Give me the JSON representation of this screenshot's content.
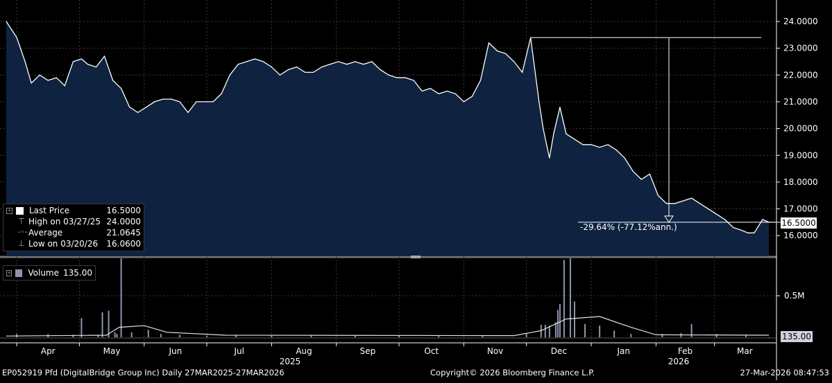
{
  "footer": {
    "left": "EP052919 Pfd (DigitalBridge Group Inc) Daily 27MAR2025-27MAR2026",
    "center": "Copyright© 2026 Bloomberg Finance L.P.",
    "right": "27-Mar-2026 08:47:53"
  },
  "price_legend": {
    "rows": [
      {
        "label": "Last Price",
        "value": "16.5000"
      },
      {
        "label": "High on 03/27/25",
        "value": "24.0000"
      },
      {
        "label": "Average",
        "value": "21.0645"
      },
      {
        "label": "Low on 03/20/26",
        "value": "16.0600"
      }
    ]
  },
  "volume_legend": {
    "label": "Volume",
    "value": "135.00"
  },
  "last_price_tag": "16.5000",
  "last_volume_tag": "135.00",
  "drawdown_label": "-29.64% (-77.12%ann.)",
  "colors": {
    "area_fill": "#0f2340",
    "line": "#ffffff",
    "volume_bar": "#8c96ad",
    "tag_bg": "#ffffff",
    "tag_text": "#000000"
  },
  "chart_data": [
    {
      "type": "area",
      "series": [
        {
          "name": "Last Price"
        }
      ],
      "ylim": [
        15.5,
        24.6
      ],
      "yticks": [
        "24.0000",
        "23.0000",
        "22.0000",
        "21.0000",
        "20.0000",
        "19.0000",
        "18.0000",
        "17.0000",
        "16.0000"
      ],
      "xticks": [
        "Apr",
        "May",
        "Jun",
        "Jul",
        "Aug",
        "Sep",
        "Oct",
        "Nov",
        "Dec",
        "Jan",
        "Feb",
        "Mar"
      ],
      "year_labels": [
        "2025",
        "2026"
      ],
      "x": [
        "2025-03-27",
        "2025-04-01",
        "2025-04-05",
        "2025-04-08",
        "2025-04-12",
        "2025-04-16",
        "2025-04-20",
        "2025-04-24",
        "2025-04-28",
        "2025-05-02",
        "2025-05-05",
        "2025-05-09",
        "2025-05-13",
        "2025-05-17",
        "2025-05-21",
        "2025-05-25",
        "2025-05-29",
        "2025-06-02",
        "2025-06-06",
        "2025-06-10",
        "2025-06-14",
        "2025-06-18",
        "2025-06-22",
        "2025-06-26",
        "2025-06-30",
        "2025-07-04",
        "2025-07-08",
        "2025-07-12",
        "2025-07-16",
        "2025-07-20",
        "2025-07-24",
        "2025-07-28",
        "2025-08-01",
        "2025-08-05",
        "2025-08-09",
        "2025-08-13",
        "2025-08-17",
        "2025-08-21",
        "2025-08-25",
        "2025-08-29",
        "2025-09-02",
        "2025-09-06",
        "2025-09-10",
        "2025-09-14",
        "2025-09-18",
        "2025-09-22",
        "2025-09-26",
        "2025-09-30",
        "2025-10-04",
        "2025-10-08",
        "2025-10-12",
        "2025-10-16",
        "2025-10-20",
        "2025-10-24",
        "2025-10-28",
        "2025-11-01",
        "2025-11-05",
        "2025-11-09",
        "2025-11-13",
        "2025-11-17",
        "2025-11-21",
        "2025-11-25",
        "2025-11-29",
        "2025-12-03",
        "2025-12-07",
        "2025-12-09",
        "2025-12-12",
        "2025-12-14",
        "2025-12-17",
        "2025-12-20",
        "2025-12-24",
        "2025-12-28",
        "2026-01-01",
        "2026-01-05",
        "2026-01-09",
        "2026-01-13",
        "2026-01-17",
        "2026-01-21",
        "2026-01-25",
        "2026-01-29",
        "2026-02-02",
        "2026-02-06",
        "2026-02-10",
        "2026-02-14",
        "2026-02-18",
        "2026-02-22",
        "2026-02-26",
        "2026-03-02",
        "2026-03-06",
        "2026-03-10",
        "2026-03-14",
        "2026-03-17",
        "2026-03-20",
        "2026-03-24",
        "2026-03-27"
      ],
      "values": [
        24.0,
        23.4,
        22.5,
        21.7,
        22.0,
        21.8,
        21.9,
        21.6,
        22.5,
        22.6,
        22.4,
        22.3,
        22.7,
        21.8,
        21.5,
        20.8,
        20.6,
        20.8,
        21.0,
        21.1,
        21.1,
        21.0,
        20.6,
        21.0,
        21.0,
        21.0,
        21.3,
        22.0,
        22.4,
        22.5,
        22.6,
        22.5,
        22.3,
        22.0,
        22.2,
        22.3,
        22.1,
        22.1,
        22.3,
        22.4,
        22.5,
        22.4,
        22.5,
        22.4,
        22.5,
        22.2,
        22.0,
        21.9,
        21.9,
        21.8,
        21.4,
        21.5,
        21.3,
        21.4,
        21.3,
        21.0,
        21.2,
        21.8,
        23.2,
        22.9,
        22.8,
        22.5,
        22.1,
        23.4,
        21.0,
        20.0,
        18.9,
        19.8,
        20.8,
        19.8,
        19.6,
        19.4,
        19.4,
        19.3,
        19.4,
        19.2,
        18.9,
        18.4,
        18.1,
        18.3,
        17.5,
        17.2,
        17.2,
        17.3,
        17.4,
        17.2,
        17.0,
        16.8,
        16.6,
        16.3,
        16.2,
        16.1,
        16.1,
        16.6,
        16.5
      ]
    },
    {
      "type": "bar",
      "series": [
        {
          "name": "Volume"
        }
      ],
      "ylim": [
        0,
        1000000
      ],
      "yticks": [
        "0.5M"
      ],
      "x": [
        "2025-04-01",
        "2025-04-16",
        "2025-04-28",
        "2025-05-02",
        "2025-05-10",
        "2025-05-12",
        "2025-05-15",
        "2025-05-18",
        "2025-05-19",
        "2025-05-21",
        "2025-05-26",
        "2025-06-03",
        "2025-06-09",
        "2025-06-18",
        "2025-07-01",
        "2025-07-15",
        "2025-08-01",
        "2025-08-20",
        "2025-09-10",
        "2025-10-01",
        "2025-10-20",
        "2025-11-10",
        "2025-12-01",
        "2025-12-08",
        "2025-12-10",
        "2025-12-12",
        "2025-12-15",
        "2025-12-16",
        "2025-12-17",
        "2025-12-19",
        "2025-12-22",
        "2025-12-24",
        "2025-12-29",
        "2026-01-05",
        "2026-01-12",
        "2026-01-20",
        "2026-02-04",
        "2026-02-13",
        "2026-02-18",
        "2026-03-02",
        "2026-03-16",
        "2026-03-27"
      ],
      "values": [
        40000,
        40000,
        30000,
        230000,
        30000,
        300000,
        320000,
        60000,
        40000,
        950000,
        60000,
        90000,
        40000,
        30000,
        20000,
        30000,
        25000,
        20000,
        20000,
        20000,
        20000,
        20000,
        40000,
        150000,
        150000,
        140000,
        180000,
        330000,
        400000,
        930000,
        950000,
        430000,
        160000,
        140000,
        80000,
        40000,
        40000,
        50000,
        160000,
        40000,
        30000,
        135
      ]
    }
  ]
}
